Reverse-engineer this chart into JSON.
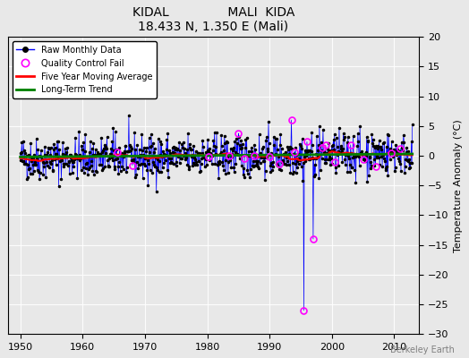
{
  "title1": "KIDAL               MALI  KIDA",
  "title2": "18.433 N, 1.350 E (Mali)",
  "ylabel": "Temperature Anomaly (°C)",
  "watermark": "Berkeley Earth",
  "xlim": [
    1948,
    2014
  ],
  "ylim": [
    -30,
    20
  ],
  "yticks": [
    -30,
    -25,
    -20,
    -15,
    -10,
    -5,
    0,
    5,
    10,
    15,
    20
  ],
  "xticks": [
    1950,
    1960,
    1970,
    1980,
    1990,
    2000,
    2010
  ],
  "bg_color": "#e8e8e8",
  "plot_bg": "#e8e8e8",
  "years_start": 1950,
  "years_end": 2012,
  "seed": 42
}
